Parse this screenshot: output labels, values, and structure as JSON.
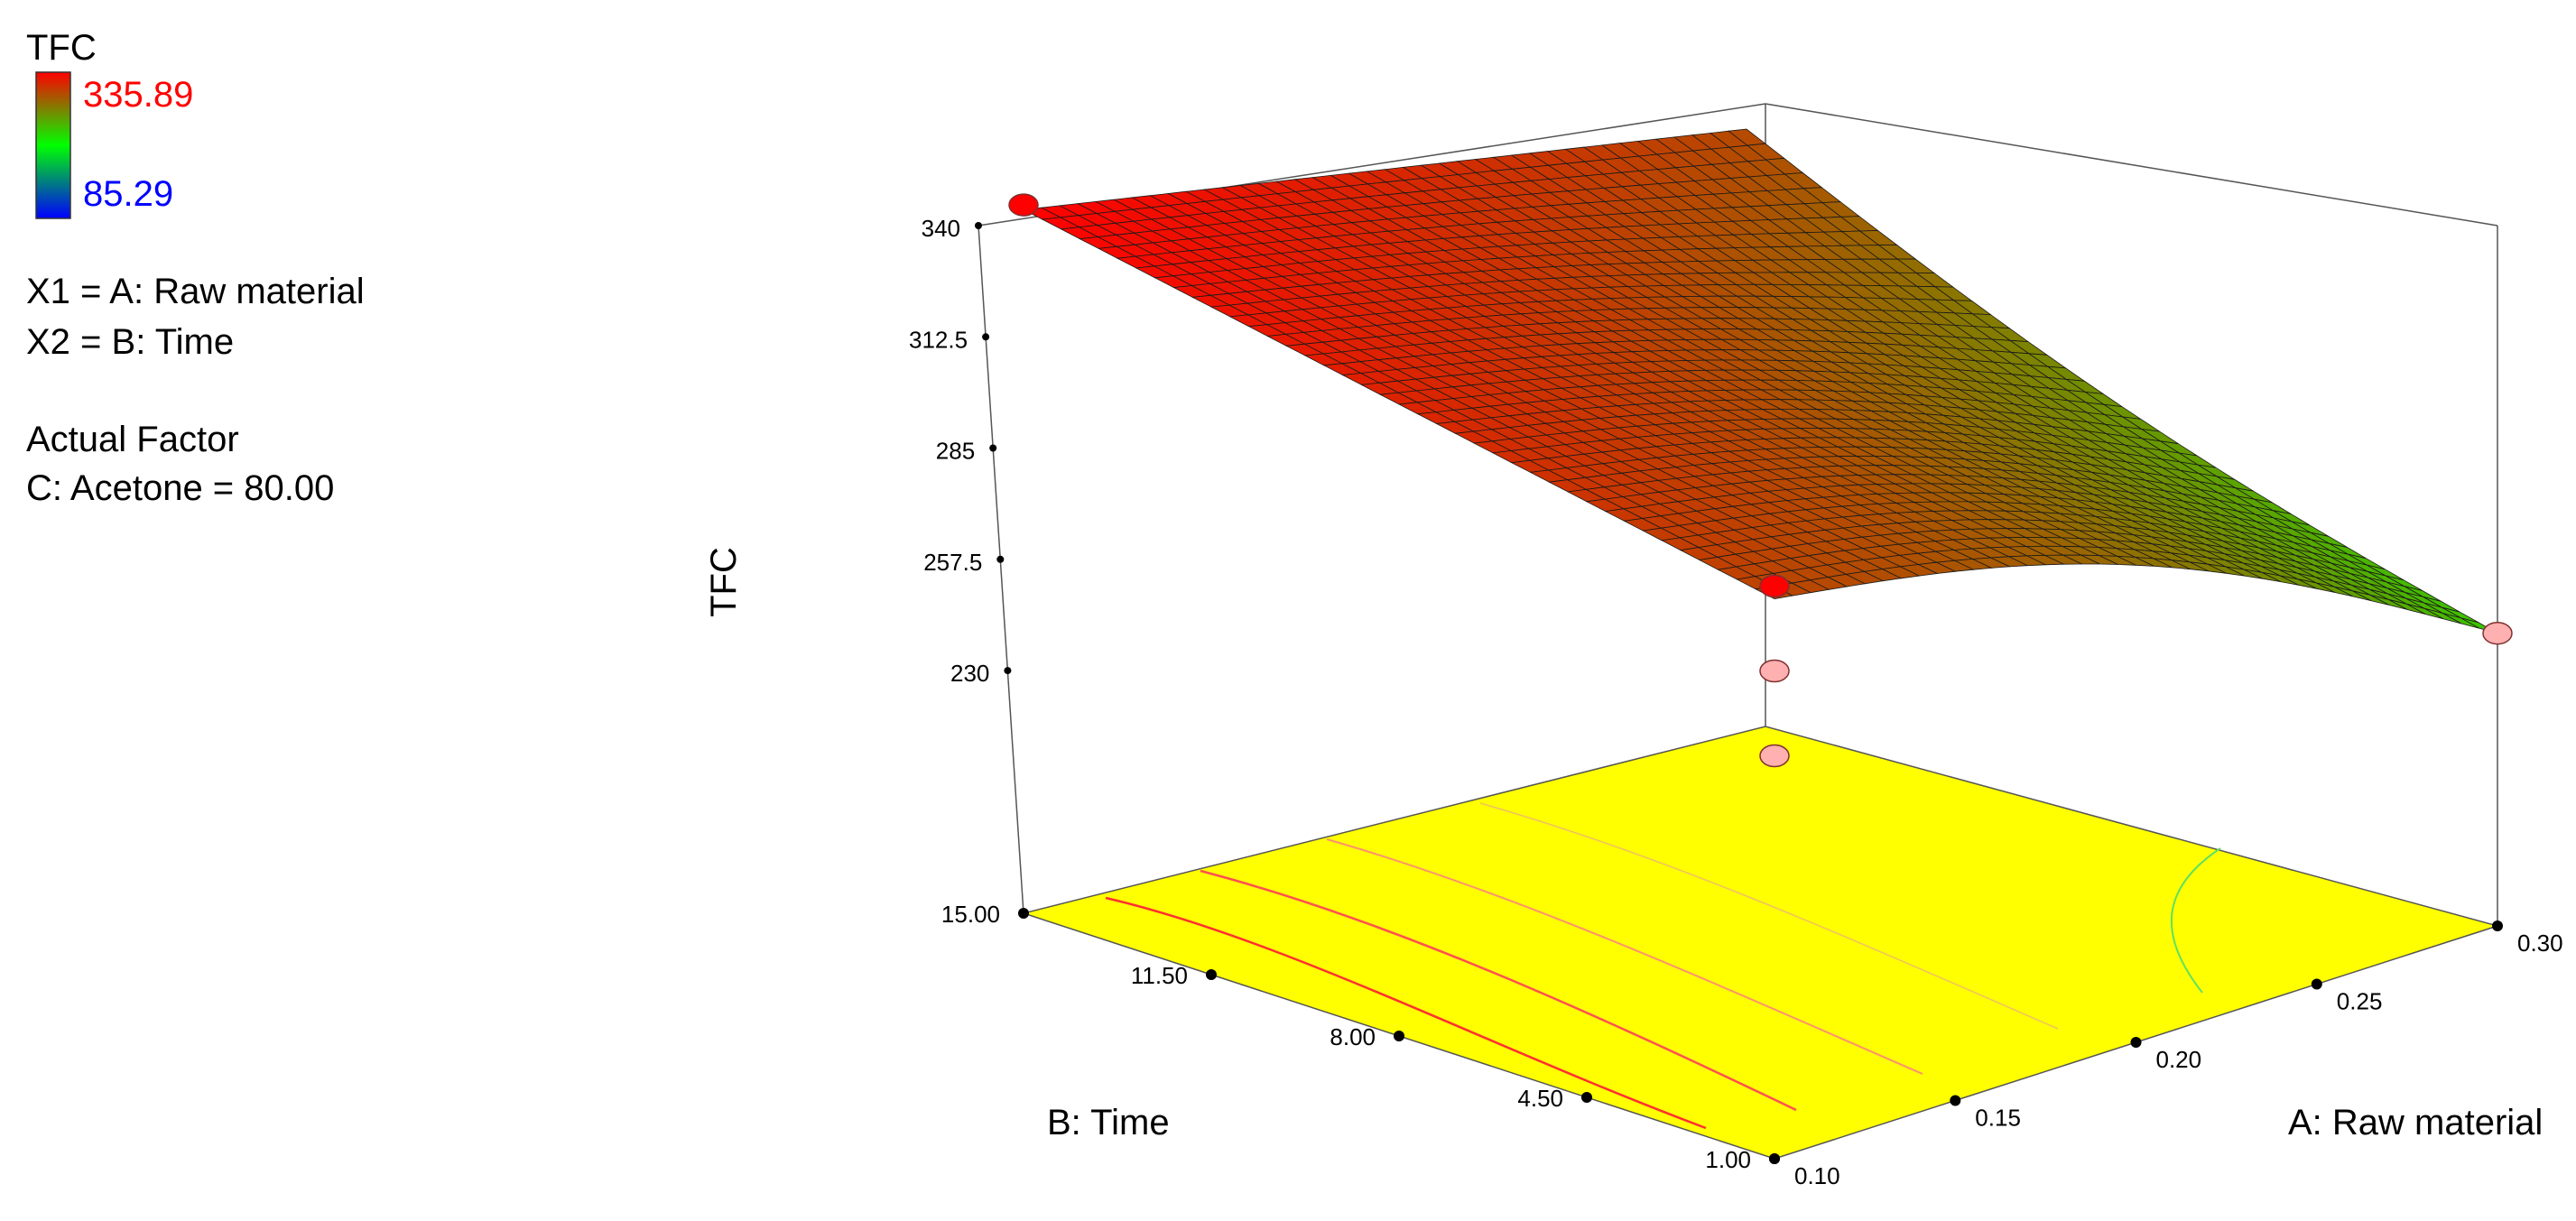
{
  "legend": {
    "title": "TFC",
    "max_label": "335.89",
    "min_label": "85.29",
    "max_color": "#ff0000",
    "min_color": "#0000ff"
  },
  "factors": {
    "x1": "X1 = A: Raw material",
    "x2": "X2 = B: Time",
    "actual_factor_heading": "Actual Factor",
    "actual_factor_value": "C: Acetone = 80.00"
  },
  "chart_data": {
    "type": "surface3d",
    "zlabel": "TFC",
    "xlabel": "A: Raw material",
    "ylabel": "B: Time",
    "x_ticks": [
      "0.10",
      "0.15",
      "0.20",
      "0.25",
      "0.30"
    ],
    "y_ticks": [
      "1.00",
      "4.50",
      "8.00",
      "11.50",
      "15.00"
    ],
    "z_ticks": [
      "230",
      "257.5",
      "285",
      "312.5",
      "340"
    ],
    "x_range": [
      0.1,
      0.3
    ],
    "y_range": [
      1.0,
      15.0
    ],
    "z_range": [
      230,
      340
    ],
    "colormap": [
      "#0000ff",
      "#00ff00",
      "#ff0000"
    ],
    "color_range": [
      85.29,
      335.89
    ],
    "floor_color": "#ffff00",
    "corner_points": [
      {
        "x": 0.1,
        "y": 15.0,
        "z": 335.89
      },
      {
        "x": 0.1,
        "y": 1.0,
        "z": 302
      },
      {
        "x": 0.3,
        "y": 1.0,
        "z": 239
      }
    ],
    "design_points": [
      {
        "x": 0.1,
        "y": 15.0,
        "z": 337,
        "color": "#ff0000"
      },
      {
        "x": 0.1,
        "y": 1.0,
        "z": 305,
        "color": "#ff0000"
      },
      {
        "x": 0.1,
        "y": 1.0,
        "z": 285,
        "color": "#ffb0b0"
      },
      {
        "x": 0.1,
        "y": 1.0,
        "z": 265,
        "color": "#ffb0b0"
      },
      {
        "x": 0.3,
        "y": 1.0,
        "z": 239,
        "color": "#ffb0b0"
      }
    ]
  }
}
